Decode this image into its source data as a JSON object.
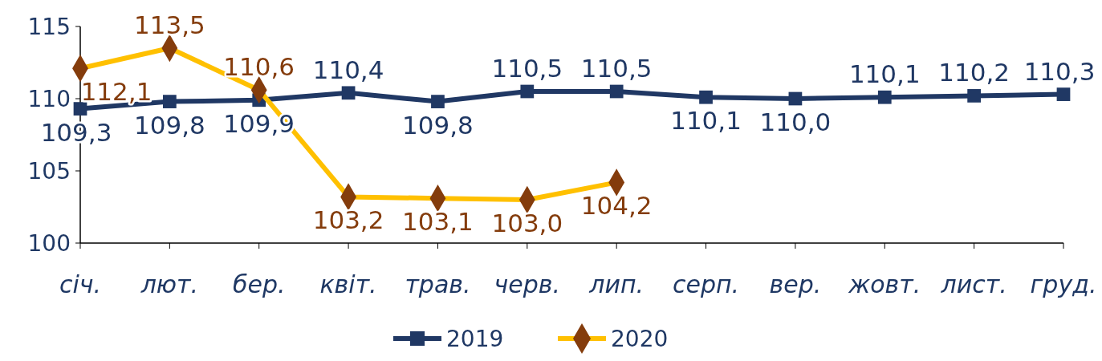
{
  "chart_data": {
    "type": "line",
    "categories": [
      "січ.",
      "лют.",
      "бер.",
      "квіт.",
      "трав.",
      "черв.",
      "лип.",
      "серп.",
      "вер.",
      "жовт.",
      "лист.",
      "груд."
    ],
    "series": [
      {
        "name": "2019",
        "color": "#203864",
        "marker": "square",
        "colors": [
          "#203864",
          "#203864",
          "#203864",
          "#203864",
          "#203864",
          "#203864",
          "#203864",
          "#203864",
          "#203864",
          "#203864",
          "#203864",
          "#203864"
        ],
        "values": [
          109.3,
          109.8,
          109.9,
          110.4,
          109.8,
          110.5,
          110.5,
          110.1,
          110.0,
          110.1,
          110.2,
          110.3
        ],
        "value_labels": [
          "109,3",
          "109,8",
          "109,9",
          "110,4",
          "109,8",
          "110,5",
          "110,5",
          "110,1",
          "110,0",
          "110,1",
          "110,2",
          "110,3"
        ]
      },
      {
        "name": "2020",
        "color": "#ffc000",
        "marker": "diamond",
        "colors": [
          "#843c0c",
          "#843c0c",
          "#843c0c",
          "#843c0c",
          "#843c0c",
          "#843c0c",
          "#843c0c",
          null,
          null,
          null,
          null,
          null
        ],
        "values": [
          112.1,
          113.5,
          110.6,
          103.2,
          103.1,
          103.0,
          104.2,
          null,
          null,
          null,
          null,
          null
        ],
        "value_labels": [
          "112,1",
          "113,5",
          "110,6",
          "103,2",
          "103,1",
          "103,0",
          "104,2",
          null,
          null,
          null,
          null,
          null
        ]
      }
    ],
    "ylim": [
      100,
      115
    ],
    "yticks": [
      100,
      105,
      110,
      115
    ],
    "grid": false,
    "legend": "bottom"
  }
}
